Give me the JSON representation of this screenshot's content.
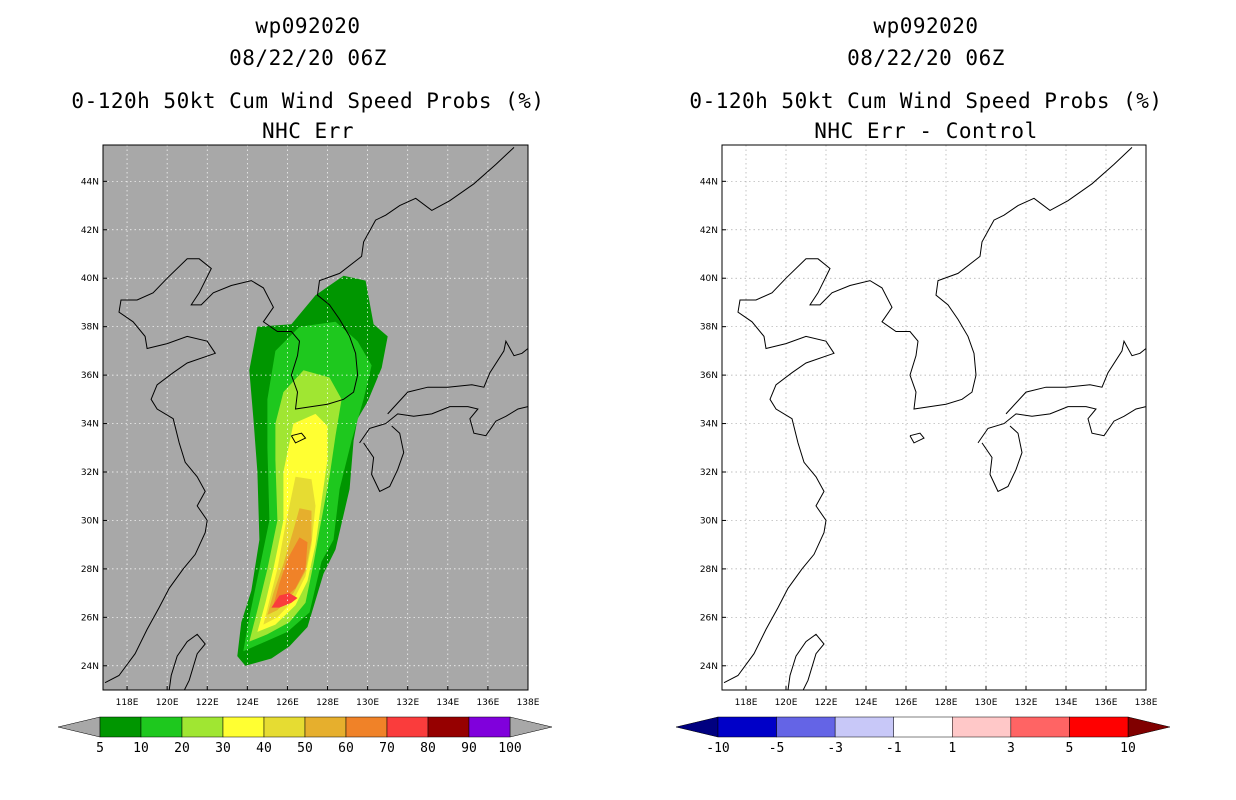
{
  "panels": [
    {
      "title_line1": "wp092020",
      "title_line2": "08/22/20 06Z",
      "title_line3": "0-120h 50kt Cum Wind Speed Probs (%)",
      "title_line4": "NHC Err",
      "background": "#a8a8a8"
    },
    {
      "title_line1": "wp092020",
      "title_line2": "08/22/20 06Z",
      "title_line3": "0-120h 50kt Cum Wind Speed Probs (%)",
      "title_line4": "NHC Err - Control",
      "background": "#ffffff"
    }
  ],
  "chart_data": [
    {
      "type": "heatmap",
      "title": "0-120h 50kt Cum Wind Speed Probs (%)",
      "subtitle": "NHC Err",
      "x_ticks": [
        "118E",
        "120E",
        "122E",
        "124E",
        "126E",
        "128E",
        "130E",
        "132E",
        "134E",
        "136E",
        "138E"
      ],
      "y_ticks": [
        "24N",
        "26N",
        "28N",
        "30N",
        "32N",
        "34N",
        "36N",
        "38N",
        "40N",
        "42N",
        "44N"
      ],
      "xlim": [
        116.8,
        138
      ],
      "ylim": [
        23,
        45.5
      ],
      "grid": true,
      "colorbar": {
        "levels": [
          "5",
          "10",
          "20",
          "30",
          "40",
          "50",
          "60",
          "70",
          "80",
          "90",
          "100"
        ],
        "colors": [
          "#009600",
          "#1ec81e",
          "#a0e632",
          "#ffff32",
          "#e6dc32",
          "#e6af2d",
          "#f08228",
          "#fa3c3c",
          "#960000",
          "#8000dc"
        ],
        "extend_colors": [
          "#a8a8a8",
          "#a8a8a8"
        ]
      },
      "contours": [
        {
          "min": 5,
          "color": "#009600",
          "points": [
            [
              126.2,
              38.1
            ],
            [
              127.4,
              39.3
            ],
            [
              128.8,
              40.1
            ],
            [
              129.9,
              39.9
            ],
            [
              130.3,
              38.1
            ],
            [
              131.0,
              37.6
            ],
            [
              130.7,
              36.3
            ],
            [
              130.0,
              34.9
            ],
            [
              129.5,
              34.2
            ],
            [
              129.3,
              33.3
            ],
            [
              129.1,
              31.3
            ],
            [
              128.4,
              28.8
            ],
            [
              127.8,
              27.8
            ],
            [
              127.0,
              25.6
            ],
            [
              126.1,
              24.8
            ],
            [
              125.2,
              24.3
            ],
            [
              123.9,
              24.0
            ],
            [
              123.5,
              24.4
            ],
            [
              123.7,
              25.8
            ],
            [
              124.2,
              27.1
            ],
            [
              124.6,
              29.2
            ],
            [
              124.5,
              32.0
            ],
            [
              124.3,
              34.2
            ],
            [
              124.1,
              36.2
            ],
            [
              124.5,
              38.0
            ]
          ]
        },
        {
          "min": 10,
          "color": "#1ec81e",
          "points": [
            [
              125.4,
              37.0
            ],
            [
              126.6,
              38.0
            ],
            [
              128.4,
              38.2
            ],
            [
              129.5,
              37.4
            ],
            [
              130.2,
              36.4
            ],
            [
              129.8,
              35.0
            ],
            [
              129.2,
              33.3
            ],
            [
              128.6,
              31.3
            ],
            [
              128.3,
              29.2
            ],
            [
              127.7,
              28.3
            ],
            [
              127.1,
              26.2
            ],
            [
              126.0,
              25.4
            ],
            [
              124.9,
              25.0
            ],
            [
              123.8,
              24.6
            ],
            [
              124.1,
              26.0
            ],
            [
              124.6,
              28.0
            ],
            [
              125.1,
              30.0
            ],
            [
              125.0,
              33.0
            ],
            [
              125.0,
              35.0
            ]
          ]
        },
        {
          "min": 20,
          "color": "#a0e632",
          "points": [
            [
              125.8,
              35.3
            ],
            [
              126.8,
              36.2
            ],
            [
              128.1,
              35.9
            ],
            [
              128.7,
              35.0
            ],
            [
              128.4,
              33.5
            ],
            [
              128.1,
              31.8
            ],
            [
              127.6,
              29.6
            ],
            [
              127.3,
              28.2
            ],
            [
              126.9,
              26.6
            ],
            [
              126.1,
              25.8
            ],
            [
              125.0,
              25.3
            ],
            [
              124.1,
              25.0
            ],
            [
              124.5,
              26.3
            ],
            [
              125.0,
              28.0
            ],
            [
              125.5,
              30.0
            ],
            [
              125.4,
              32.5
            ],
            [
              125.4,
              34.0
            ]
          ]
        },
        {
          "min": 30,
          "color": "#ffff32",
          "points": [
            [
              126.3,
              34.0
            ],
            [
              127.4,
              34.4
            ],
            [
              128.0,
              33.9
            ],
            [
              128.0,
              32.5
            ],
            [
              127.7,
              30.8
            ],
            [
              127.4,
              29.0
            ],
            [
              127.0,
              27.5
            ],
            [
              126.4,
              26.5
            ],
            [
              125.4,
              25.7
            ],
            [
              124.5,
              25.4
            ],
            [
              124.9,
              26.6
            ],
            [
              125.3,
              28.0
            ],
            [
              125.8,
              30.0
            ],
            [
              125.8,
              32.0
            ]
          ]
        },
        {
          "min": 40,
          "color": "#e6dc32",
          "points": [
            [
              126.4,
              31.8
            ],
            [
              127.2,
              31.7
            ],
            [
              127.4,
              30.6
            ],
            [
              127.2,
              29.0
            ],
            [
              126.9,
              27.7
            ],
            [
              126.3,
              26.7
            ],
            [
              125.5,
              26.0
            ],
            [
              124.8,
              25.7
            ],
            [
              125.1,
              26.7
            ],
            [
              125.5,
              28.0
            ],
            [
              125.9,
              29.8
            ]
          ]
        },
        {
          "min": 50,
          "color": "#e6af2d",
          "points": [
            [
              126.6,
              30.5
            ],
            [
              127.2,
              30.4
            ],
            [
              127.2,
              29.2
            ],
            [
              126.9,
              27.9
            ],
            [
              126.3,
              27.0
            ],
            [
              125.5,
              26.3
            ],
            [
              125.0,
              26.1
            ],
            [
              125.3,
              27.0
            ],
            [
              125.8,
              28.2
            ],
            [
              126.3,
              29.6
            ]
          ]
        },
        {
          "min": 60,
          "color": "#f08228",
          "points": [
            [
              126.6,
              29.3
            ],
            [
              127.0,
              29.1
            ],
            [
              126.9,
              28.0
            ],
            [
              126.4,
              27.2
            ],
            [
              125.6,
              26.6
            ],
            [
              125.3,
              26.5
            ],
            [
              125.6,
              27.4
            ],
            [
              126.0,
              28.4
            ]
          ]
        },
        {
          "min": 70,
          "color": "#fa3c3c",
          "points": [
            [
              125.6,
              26.9
            ],
            [
              126.1,
              27.0
            ],
            [
              126.5,
              26.8
            ],
            [
              126.2,
              26.6
            ],
            [
              125.6,
              26.4
            ],
            [
              125.2,
              26.4
            ]
          ]
        }
      ]
    },
    {
      "type": "heatmap",
      "title": "0-120h 50kt Cum Wind Speed Probs (%)",
      "subtitle": "NHC Err - Control",
      "x_ticks": [
        "118E",
        "120E",
        "122E",
        "124E",
        "126E",
        "128E",
        "130E",
        "132E",
        "134E",
        "136E",
        "138E"
      ],
      "y_ticks": [
        "24N",
        "26N",
        "28N",
        "30N",
        "32N",
        "34N",
        "36N",
        "38N",
        "40N",
        "42N",
        "44N"
      ],
      "xlim": [
        116.8,
        138
      ],
      "ylim": [
        23,
        45.5
      ],
      "grid": true,
      "colorbar": {
        "levels": [
          "-10",
          "-5",
          "-3",
          "-1",
          "1",
          "3",
          "5",
          "10"
        ],
        "colors": [
          "#0000c8",
          "#6464e6",
          "#c8c8f8",
          "#ffffff",
          "#ffc8c8",
          "#ff6464",
          "#ff0000"
        ],
        "extend_colors": [
          "#000080",
          "#800000"
        ]
      },
      "contours": []
    }
  ],
  "coastline": [
    [
      [
        116.9,
        23.3
      ],
      [
        117.6,
        23.6
      ],
      [
        118.4,
        24.5
      ],
      [
        119.0,
        25.5
      ],
      [
        119.6,
        26.4
      ],
      [
        120.1,
        27.2
      ],
      [
        120.8,
        28.0
      ],
      [
        121.4,
        28.6
      ],
      [
        121.9,
        29.5
      ],
      [
        122.0,
        30.0
      ],
      [
        121.5,
        30.6
      ],
      [
        121.9,
        31.2
      ],
      [
        121.5,
        31.8
      ],
      [
        120.9,
        32.4
      ],
      [
        120.6,
        33.2
      ],
      [
        120.3,
        34.2
      ],
      [
        119.5,
        34.6
      ],
      [
        119.2,
        35.0
      ],
      [
        119.5,
        35.6
      ],
      [
        120.3,
        36.1
      ],
      [
        121.0,
        36.5
      ],
      [
        122.4,
        36.9
      ],
      [
        122.0,
        37.4
      ],
      [
        121.0,
        37.6
      ],
      [
        120.0,
        37.3
      ],
      [
        119.0,
        37.1
      ],
      [
        118.9,
        37.6
      ],
      [
        118.3,
        38.2
      ],
      [
        117.6,
        38.6
      ],
      [
        117.7,
        39.1
      ],
      [
        118.5,
        39.1
      ],
      [
        119.3,
        39.4
      ],
      [
        120.0,
        40.0
      ],
      [
        121.0,
        40.8
      ],
      [
        121.6,
        40.8
      ],
      [
        122.2,
        40.4
      ],
      [
        121.6,
        39.4
      ],
      [
        121.2,
        38.9
      ],
      [
        121.7,
        38.9
      ],
      [
        122.3,
        39.4
      ],
      [
        123.2,
        39.7
      ],
      [
        124.2,
        39.9
      ],
      [
        124.8,
        39.6
      ],
      [
        125.3,
        38.8
      ],
      [
        124.8,
        38.2
      ],
      [
        125.5,
        37.8
      ],
      [
        126.2,
        37.8
      ],
      [
        126.6,
        37.4
      ],
      [
        126.5,
        36.8
      ],
      [
        126.2,
        36.0
      ],
      [
        126.5,
        35.3
      ],
      [
        126.4,
        34.6
      ],
      [
        127.2,
        34.7
      ],
      [
        128.0,
        34.8
      ],
      [
        128.8,
        35.0
      ],
      [
        129.3,
        35.3
      ],
      [
        129.5,
        36.0
      ],
      [
        129.4,
        36.9
      ],
      [
        129.1,
        37.6
      ],
      [
        128.6,
        38.3
      ],
      [
        128.1,
        38.9
      ],
      [
        127.5,
        39.3
      ],
      [
        127.6,
        39.9
      ],
      [
        128.6,
        40.2
      ],
      [
        129.7,
        40.9
      ],
      [
        129.8,
        41.5
      ],
      [
        130.4,
        42.4
      ],
      [
        130.9,
        42.6
      ],
      [
        131.6,
        43.0
      ],
      [
        132.4,
        43.3
      ],
      [
        133.2,
        42.8
      ],
      [
        134.1,
        43.2
      ],
      [
        135.3,
        43.9
      ],
      [
        136.4,
        44.7
      ],
      [
        137.3,
        45.4
      ]
    ],
    [
      [
        120.8,
        22.9
      ],
      [
        121.1,
        23.4
      ],
      [
        121.5,
        24.5
      ],
      [
        121.9,
        24.9
      ],
      [
        121.5,
        25.3
      ],
      [
        121.0,
        25.0
      ],
      [
        120.5,
        24.4
      ],
      [
        120.2,
        23.6
      ],
      [
        120.1,
        23.0
      ]
    ],
    [
      [
        129.6,
        33.2
      ],
      [
        130.1,
        33.8
      ],
      [
        130.9,
        34.0
      ],
      [
        131.5,
        34.4
      ],
      [
        132.3,
        34.3
      ],
      [
        133.2,
        34.4
      ],
      [
        134.1,
        34.7
      ],
      [
        135.0,
        34.7
      ],
      [
        135.5,
        34.6
      ],
      [
        135.1,
        34.2
      ],
      [
        135.3,
        33.6
      ],
      [
        135.9,
        33.5
      ],
      [
        136.4,
        34.1
      ],
      [
        136.9,
        34.3
      ],
      [
        137.5,
        34.6
      ],
      [
        138.0,
        34.7
      ]
    ],
    [
      [
        129.8,
        33.2
      ],
      [
        130.3,
        32.6
      ],
      [
        130.2,
        31.9
      ],
      [
        130.6,
        31.2
      ],
      [
        131.1,
        31.4
      ],
      [
        131.5,
        32.1
      ],
      [
        131.8,
        32.8
      ],
      [
        131.6,
        33.6
      ],
      [
        131.2,
        33.9
      ]
    ],
    [
      [
        131.0,
        34.4
      ],
      [
        132.0,
        35.3
      ],
      [
        133.0,
        35.5
      ],
      [
        134.0,
        35.5
      ],
      [
        135.2,
        35.6
      ],
      [
        135.8,
        35.5
      ],
      [
        136.1,
        36.1
      ],
      [
        136.8,
        37.0
      ],
      [
        136.9,
        37.4
      ],
      [
        137.3,
        36.8
      ],
      [
        137.7,
        36.9
      ],
      [
        138.0,
        37.1
      ]
    ],
    [
      [
        126.2,
        33.5
      ],
      [
        126.7,
        33.6
      ],
      [
        126.9,
        33.4
      ],
      [
        126.4,
        33.2
      ],
      [
        126.2,
        33.5
      ]
    ]
  ]
}
